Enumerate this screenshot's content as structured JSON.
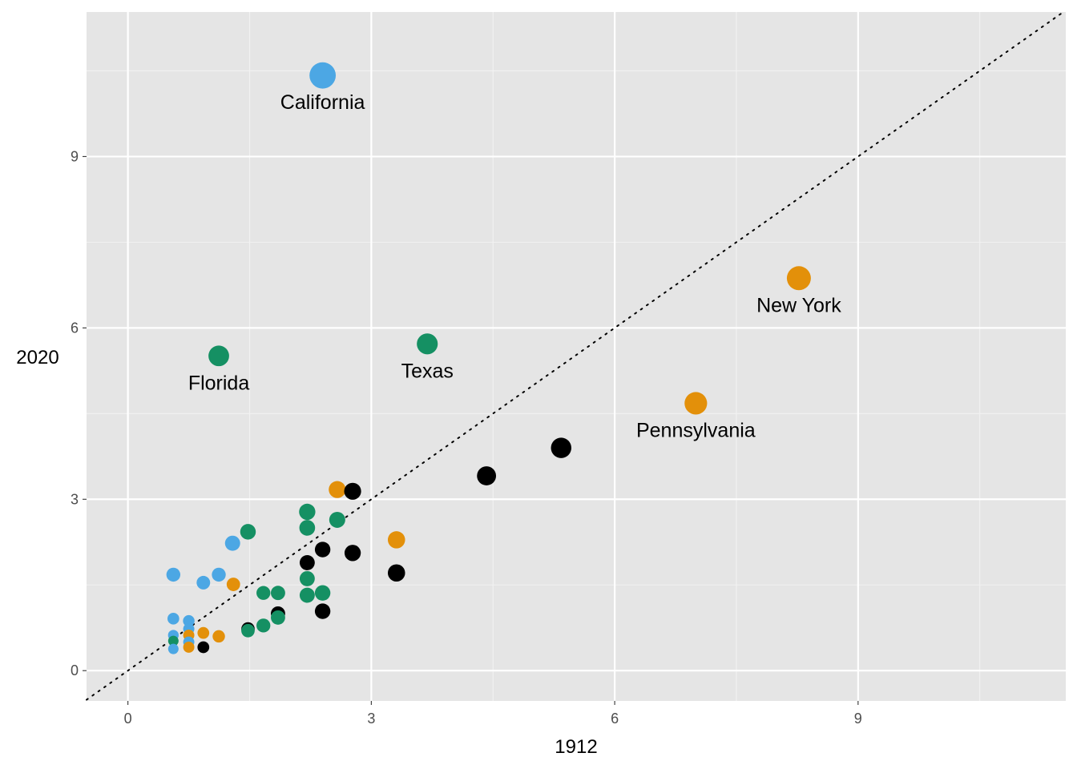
{
  "chart_data": {
    "type": "scatter",
    "xlabel": "1912",
    "ylabel": "2020",
    "xlim": [
      -0.51,
      11.56
    ],
    "ylim": [
      -0.53,
      11.53
    ],
    "x_ticks": [
      0,
      3,
      6,
      9
    ],
    "y_ticks": [
      0,
      3,
      6,
      9
    ],
    "grid": true,
    "reference_line": "y = x (dotted)",
    "colors": {
      "blue": "#4CA7E4",
      "green": "#159063",
      "orange": "#E3900A",
      "black": "#000000"
    },
    "points": [
      {
        "x": 2.4,
        "y": 10.42,
        "color": "blue",
        "label": "California"
      },
      {
        "x": 8.27,
        "y": 6.87,
        "color": "orange",
        "label": "New York"
      },
      {
        "x": 3.69,
        "y": 5.72,
        "color": "green",
        "label": "Texas"
      },
      {
        "x": 1.12,
        "y": 5.51,
        "color": "green",
        "label": "Florida"
      },
      {
        "x": 7.0,
        "y": 4.68,
        "color": "orange",
        "label": "Pennsylvania"
      },
      {
        "x": 5.34,
        "y": 3.9,
        "color": "black"
      },
      {
        "x": 4.42,
        "y": 3.41,
        "color": "black"
      },
      {
        "x": 2.58,
        "y": 3.17,
        "color": "orange"
      },
      {
        "x": 2.77,
        "y": 3.14,
        "color": "black"
      },
      {
        "x": 2.21,
        "y": 2.78,
        "color": "green"
      },
      {
        "x": 2.58,
        "y": 2.64,
        "color": "green"
      },
      {
        "x": 2.21,
        "y": 2.5,
        "color": "green"
      },
      {
        "x": 1.48,
        "y": 2.43,
        "color": "green"
      },
      {
        "x": 3.31,
        "y": 2.29,
        "color": "orange"
      },
      {
        "x": 1.29,
        "y": 2.23,
        "color": "blue"
      },
      {
        "x": 2.4,
        "y": 2.12,
        "color": "black"
      },
      {
        "x": 2.77,
        "y": 2.06,
        "color": "black"
      },
      {
        "x": 2.21,
        "y": 1.89,
        "color": "black"
      },
      {
        "x": 3.31,
        "y": 1.71,
        "color": "black"
      },
      {
        "x": 0.56,
        "y": 1.68,
        "color": "blue"
      },
      {
        "x": 1.12,
        "y": 1.68,
        "color": "blue"
      },
      {
        "x": 2.21,
        "y": 1.61,
        "color": "green"
      },
      {
        "x": 0.93,
        "y": 1.54,
        "color": "blue"
      },
      {
        "x": 1.3,
        "y": 1.51,
        "color": "orange"
      },
      {
        "x": 1.67,
        "y": 1.36,
        "color": "green"
      },
      {
        "x": 1.85,
        "y": 1.36,
        "color": "green"
      },
      {
        "x": 2.4,
        "y": 1.36,
        "color": "green"
      },
      {
        "x": 2.21,
        "y": 1.32,
        "color": "green"
      },
      {
        "x": 2.4,
        "y": 1.04,
        "color": "black"
      },
      {
        "x": 1.85,
        "y": 1.0,
        "color": "black"
      },
      {
        "x": 1.85,
        "y": 0.93,
        "color": "green"
      },
      {
        "x": 0.56,
        "y": 0.91,
        "color": "blue"
      },
      {
        "x": 0.75,
        "y": 0.87,
        "color": "blue"
      },
      {
        "x": 1.67,
        "y": 0.79,
        "color": "green"
      },
      {
        "x": 1.48,
        "y": 0.73,
        "color": "black"
      },
      {
        "x": 1.48,
        "y": 0.7,
        "color": "green"
      },
      {
        "x": 0.75,
        "y": 0.73,
        "color": "blue"
      },
      {
        "x": 0.93,
        "y": 0.66,
        "color": "orange"
      },
      {
        "x": 1.12,
        "y": 0.6,
        "color": "orange"
      },
      {
        "x": 0.75,
        "y": 0.62,
        "color": "orange"
      },
      {
        "x": 0.56,
        "y": 0.62,
        "color": "blue"
      },
      {
        "x": 0.56,
        "y": 0.52,
        "color": "green"
      },
      {
        "x": 0.75,
        "y": 0.5,
        "color": "blue"
      },
      {
        "x": 0.75,
        "y": 0.41,
        "color": "orange"
      },
      {
        "x": 0.93,
        "y": 0.41,
        "color": "black"
      },
      {
        "x": 0.56,
        "y": 0.38,
        "color": "blue"
      }
    ]
  }
}
